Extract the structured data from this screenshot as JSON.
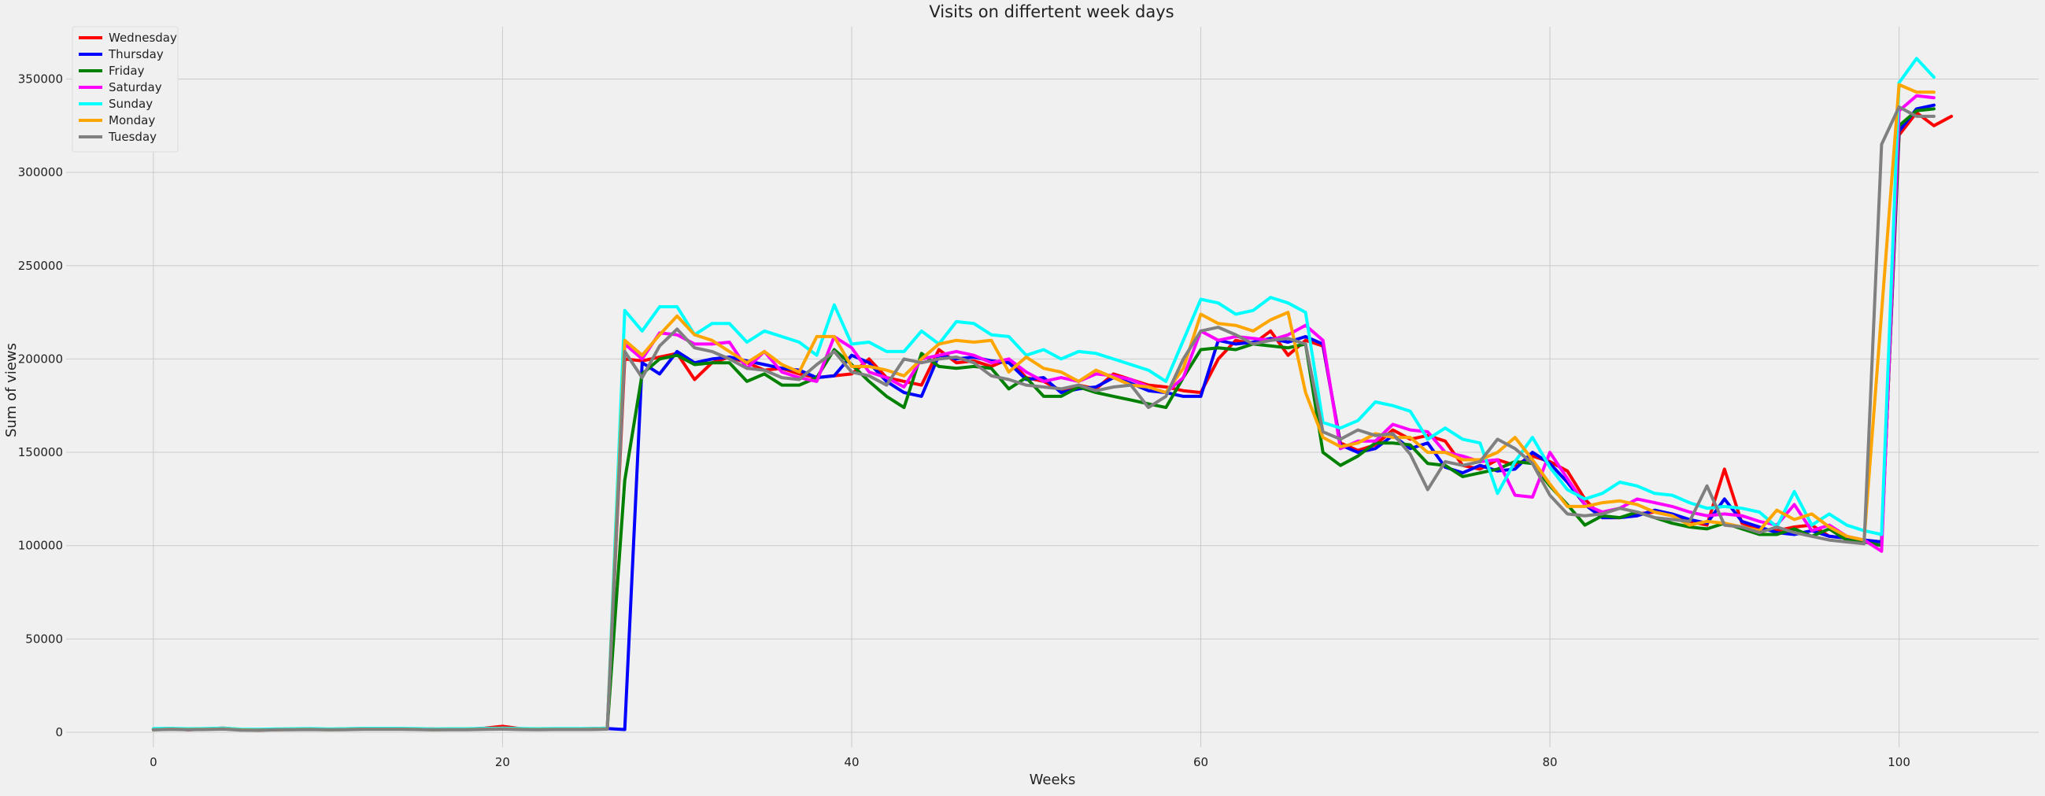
{
  "chart_data": {
    "type": "line",
    "title": "Visits on differtent week days",
    "xlabel": "Weeks",
    "ylabel": "Sum of views",
    "xlim": [
      -5,
      108
    ],
    "ylim": [
      -8000,
      378000
    ],
    "xticks": [
      0,
      20,
      40,
      60,
      80,
      100
    ],
    "yticks": [
      0,
      50000,
      100000,
      150000,
      200000,
      250000,
      300000,
      350000
    ],
    "grid": true,
    "legend_position": "top-left",
    "series": [
      {
        "name": "Wednesday",
        "color": "#ff0000",
        "x_start": 0,
        "values": [
          1800,
          2100,
          1300,
          1800,
          2300,
          1500,
          1200,
          1400,
          1600,
          1800,
          1500,
          1900,
          2000,
          1700,
          2100,
          1600,
          1800,
          1500,
          1700,
          2200,
          3200,
          2000,
          1500,
          1900,
          1800,
          2000,
          2200,
          200000,
          199000,
          201000,
          203000,
          189000,
          198000,
          201000,
          198000,
          194000,
          195000,
          192000,
          190000,
          191000,
          192000,
          200000,
          190000,
          188000,
          186000,
          205000,
          198000,
          199000,
          196000,
          200000,
          190000,
          188000,
          183000,
          186000,
          184000,
          192000,
          189000,
          186000,
          185000,
          183000,
          182000,
          200000,
          210000,
          208000,
          215000,
          202000,
          210000,
          207000,
          155000,
          151000,
          154000,
          162000,
          157000,
          159000,
          156000,
          143000,
          141000,
          146000,
          143000,
          148000,
          145000,
          140000,
          125000,
          115000,
          115000,
          117000,
          118000,
          116000,
          113000,
          111000,
          141000,
          112000,
          109000,
          108000,
          110000,
          111000,
          105000,
          104000,
          103000,
          102000,
          320000,
          332000,
          325000,
          330000
        ]
      },
      {
        "name": "Thursday",
        "color": "#0000ff",
        "x_start": 0,
        "values": [
          1700,
          2000,
          1600,
          1900,
          2100,
          1400,
          1300,
          1500,
          1700,
          1900,
          1600,
          1800,
          1900,
          1800,
          2000,
          1700,
          1700,
          1600,
          1800,
          2000,
          2100,
          1800,
          1600,
          1800,
          1700,
          1900,
          2000,
          1500,
          198000,
          192000,
          204000,
          198000,
          200000,
          201000,
          199000,
          197000,
          195000,
          194000,
          190000,
          191000,
          202000,
          198000,
          188000,
          182000,
          180000,
          202000,
          200000,
          201000,
          199000,
          198000,
          189000,
          190000,
          182000,
          184000,
          185000,
          190000,
          187000,
          183000,
          182000,
          180000,
          180000,
          210000,
          208000,
          209000,
          211000,
          209000,
          212000,
          208000,
          154000,
          150000,
          152000,
          159000,
          152000,
          155000,
          142000,
          139000,
          143000,
          140000,
          141000,
          150000,
          144000,
          134000,
          122000,
          115000,
          115000,
          116000,
          119000,
          117000,
          114000,
          112000,
          125000,
          113000,
          110000,
          107000,
          106000,
          108000,
          105000,
          104000,
          103000,
          102000,
          322000,
          334000,
          336000
        ]
      },
      {
        "name": "Friday",
        "color": "#008000",
        "x_start": 0,
        "values": [
          1600,
          1900,
          1700,
          1800,
          2000,
          1500,
          1400,
          1600,
          1700,
          1800,
          1600,
          1700,
          1900,
          1900,
          1900,
          1800,
          1600,
          1700,
          1700,
          1900,
          2000,
          1800,
          1700,
          1800,
          1800,
          1800,
          2000,
          135000,
          192000,
          200000,
          202000,
          197000,
          198000,
          198000,
          188000,
          192000,
          186000,
          186000,
          190000,
          205000,
          197000,
          188000,
          180000,
          174000,
          203000,
          196000,
          195000,
          196000,
          195000,
          184000,
          190000,
          180000,
          180000,
          185000,
          182000,
          180000,
          178000,
          176000,
          174000,
          190000,
          205000,
          206000,
          205000,
          208000,
          207000,
          206000,
          208000,
          150000,
          143000,
          148000,
          155000,
          155000,
          154000,
          144000,
          143000,
          137000,
          139000,
          141000,
          145000,
          144000,
          132000,
          122000,
          111000,
          116000,
          115000,
          118000,
          115000,
          112000,
          110000,
          109000,
          112000,
          109000,
          106000,
          106000,
          109000,
          105000,
          109000,
          103000,
          102000,
          100000,
          325000,
          333000,
          334000
        ]
      },
      {
        "name": "Saturday",
        "color": "#ff00ff",
        "x_start": 0,
        "values": [
          1500,
          1800,
          1600,
          1700,
          1900,
          1400,
          1300,
          1500,
          1600,
          1700,
          1500,
          1600,
          1800,
          1800,
          1800,
          1700,
          1500,
          1600,
          1600,
          1800,
          1900,
          1700,
          1600,
          1700,
          1700,
          1700,
          1900,
          208000,
          200000,
          214000,
          213000,
          208000,
          208000,
          209000,
          195000,
          204000,
          193000,
          190000,
          188000,
          212000,
          206000,
          193000,
          190000,
          185000,
          200000,
          202000,
          204000,
          202000,
          198000,
          200000,
          193000,
          188000,
          190000,
          188000,
          192000,
          191000,
          189000,
          185000,
          182000,
          190000,
          215000,
          210000,
          212000,
          211000,
          210000,
          213000,
          218000,
          210000,
          152000,
          156000,
          156000,
          165000,
          162000,
          161000,
          150000,
          148000,
          145000,
          146000,
          127000,
          126000,
          150000,
          136000,
          122000,
          118000,
          120000,
          125000,
          123000,
          121000,
          118000,
          116000,
          117000,
          116000,
          113000,
          111000,
          122000,
          108000,
          111000,
          105000,
          103000,
          97000,
          333000,
          341000,
          340000
        ]
      },
      {
        "name": "Sunday",
        "color": "#00ffff",
        "x_start": 0,
        "values": [
          2000,
          2100,
          1900,
          2000,
          2200,
          1700,
          1600,
          1800,
          1900,
          2000,
          1800,
          1900,
          2100,
          2100,
          2100,
          2000,
          1800,
          1900,
          1900,
          2100,
          2200,
          2000,
          1900,
          2000,
          2000,
          2000,
          2200,
          226000,
          215000,
          228000,
          228000,
          213000,
          219000,
          219000,
          209000,
          215000,
          212000,
          209000,
          202000,
          229000,
          208000,
          209000,
          204000,
          204000,
          215000,
          208000,
          220000,
          219000,
          213000,
          212000,
          202000,
          205000,
          200000,
          204000,
          203000,
          200000,
          197000,
          194000,
          188000,
          210000,
          232000,
          230000,
          224000,
          226000,
          233000,
          230000,
          225000,
          166000,
          163000,
          167000,
          177000,
          175000,
          172000,
          157000,
          163000,
          157000,
          155000,
          128000,
          145000,
          158000,
          142000,
          130000,
          125000,
          128000,
          134000,
          132000,
          128000,
          127000,
          123000,
          120000,
          121000,
          120000,
          118000,
          110000,
          129000,
          111000,
          117000,
          111000,
          108000,
          106000,
          348000,
          361000,
          351000
        ]
      },
      {
        "name": "Monday",
        "color": "#ffa500",
        "x_start": 0,
        "values": [
          1400,
          1700,
          1500,
          1600,
          1800,
          1300,
          1200,
          1400,
          1500,
          1600,
          1400,
          1500,
          1700,
          1700,
          1700,
          1600,
          1400,
          1500,
          1500,
          1700,
          1800,
          1600,
          1500,
          1600,
          1600,
          1600,
          1800,
          210000,
          202000,
          213000,
          223000,
          213000,
          210000,
          204000,
          198000,
          204000,
          197000,
          193000,
          212000,
          212000,
          196000,
          196000,
          194000,
          191000,
          200000,
          208000,
          210000,
          209000,
          210000,
          193000,
          201000,
          195000,
          193000,
          188000,
          194000,
          190000,
          186000,
          185000,
          182000,
          195000,
          224000,
          219000,
          218000,
          215000,
          221000,
          225000,
          182000,
          158000,
          153000,
          155000,
          160000,
          158000,
          158000,
          150000,
          150000,
          146000,
          146000,
          150000,
          158000,
          146000,
          133000,
          121000,
          121000,
          123000,
          124000,
          122000,
          118000,
          116000,
          111000,
          113000,
          112000,
          110000,
          108000,
          119000,
          114000,
          117000,
          110000,
          105000,
          103000,
          225000,
          347000,
          343000,
          343000
        ]
      },
      {
        "name": "Tuesday",
        "color": "#808080",
        "x_start": 0,
        "values": [
          1300,
          1600,
          1400,
          1500,
          1700,
          1200,
          1100,
          1300,
          1400,
          1500,
          1300,
          1400,
          1600,
          1600,
          1600,
          1500,
          1300,
          1400,
          1400,
          1600,
          1700,
          1500,
          1400,
          1500,
          1500,
          1500,
          1700,
          204000,
          190000,
          207000,
          216000,
          206000,
          204000,
          200000,
          195000,
          194000,
          190000,
          189000,
          197000,
          204000,
          193000,
          191000,
          186000,
          200000,
          198000,
          200000,
          201000,
          198000,
          191000,
          189000,
          186000,
          185000,
          184000,
          186000,
          183000,
          185000,
          186000,
          174000,
          180000,
          200000,
          215000,
          217000,
          213000,
          208000,
          210000,
          211000,
          208000,
          161000,
          157000,
          162000,
          159000,
          160000,
          149000,
          130000,
          145000,
          143000,
          145000,
          157000,
          152000,
          144000,
          127000,
          117000,
          116000,
          117000,
          120000,
          118000,
          115000,
          114000,
          113000,
          132000,
          111000,
          110000,
          107000,
          110000,
          107000,
          105000,
          103000,
          102000,
          101000,
          315000,
          335000,
          330000,
          330000
        ]
      }
    ]
  }
}
